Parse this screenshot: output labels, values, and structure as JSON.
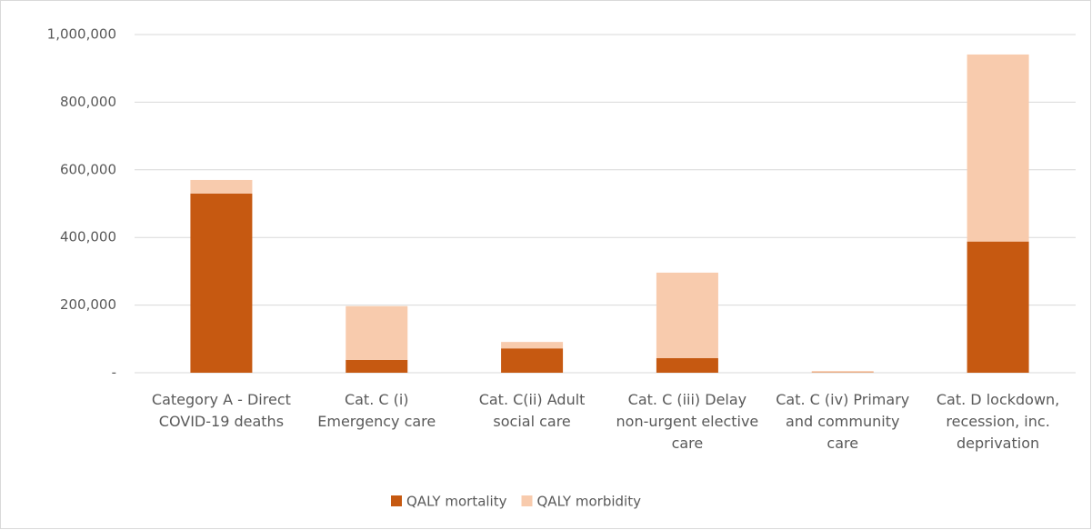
{
  "chart_data": {
    "type": "stacked_bar",
    "categories": [
      "Category A - Direct COVID-19 deaths",
      "Cat. C (i) Emergency care",
      "Cat. C(ii) Adult social care",
      "Cat. C (iii) Delay non-urgent elective care",
      "Cat. C (iv) Primary and community care",
      "Cat. D lockdown, recession, inc. deprivation"
    ],
    "series": [
      {
        "name": "QALY mortality",
        "color": "#c65911",
        "values": [
          530000,
          38000,
          72000,
          43000,
          1000,
          388000
        ]
      },
      {
        "name": "QALY morbidity",
        "color": "#f8cbad",
        "values": [
          40000,
          159000,
          19000,
          253000,
          4000,
          553000
        ]
      }
    ],
    "ylim": [
      0,
      1000000
    ],
    "yticks": [
      {
        "value": 0,
        "label": "-"
      },
      {
        "value": 200000,
        "label": "200,000"
      },
      {
        "value": 400000,
        "label": "400,000"
      },
      {
        "value": 600000,
        "label": "600,000"
      },
      {
        "value": 800000,
        "label": "800,000"
      },
      {
        "value": 1000000,
        "label": "1,000,000"
      }
    ],
    "grid": true,
    "legend": "bottom"
  }
}
